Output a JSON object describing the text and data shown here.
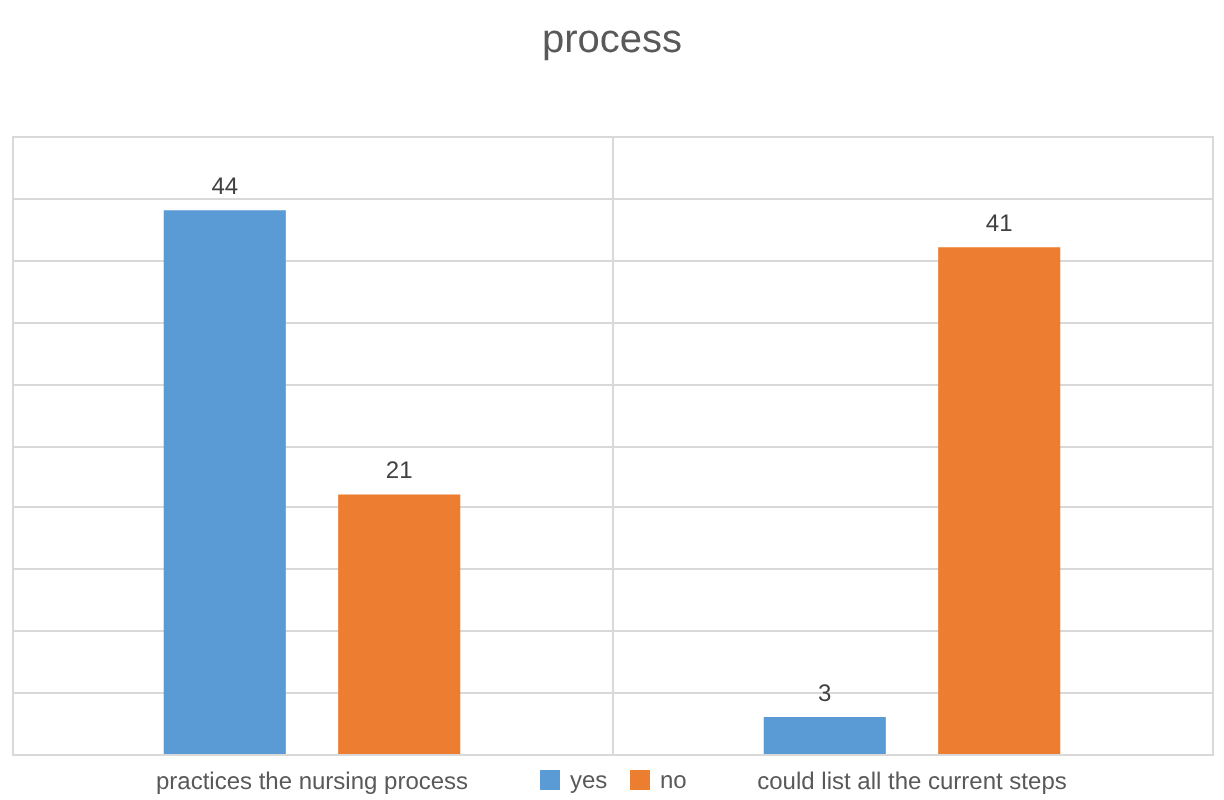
{
  "chart_data": {
    "type": "bar",
    "title": "process",
    "categories": [
      "practices the nursing process",
      "could list all the current steps"
    ],
    "series": [
      {
        "name": "yes",
        "color": "#5b9bd5",
        "values": [
          44,
          3
        ]
      },
      {
        "name": "no",
        "color": "#ed7d31",
        "values": [
          21,
          41
        ]
      }
    ],
    "ylim": [
      0,
      50
    ],
    "yticks": [
      0,
      5,
      10,
      15,
      20,
      25,
      30,
      35,
      40,
      45,
      50
    ],
    "tick_labels": "x",
    "grid": true,
    "legend": "bottom",
    "data_labels": true
  }
}
